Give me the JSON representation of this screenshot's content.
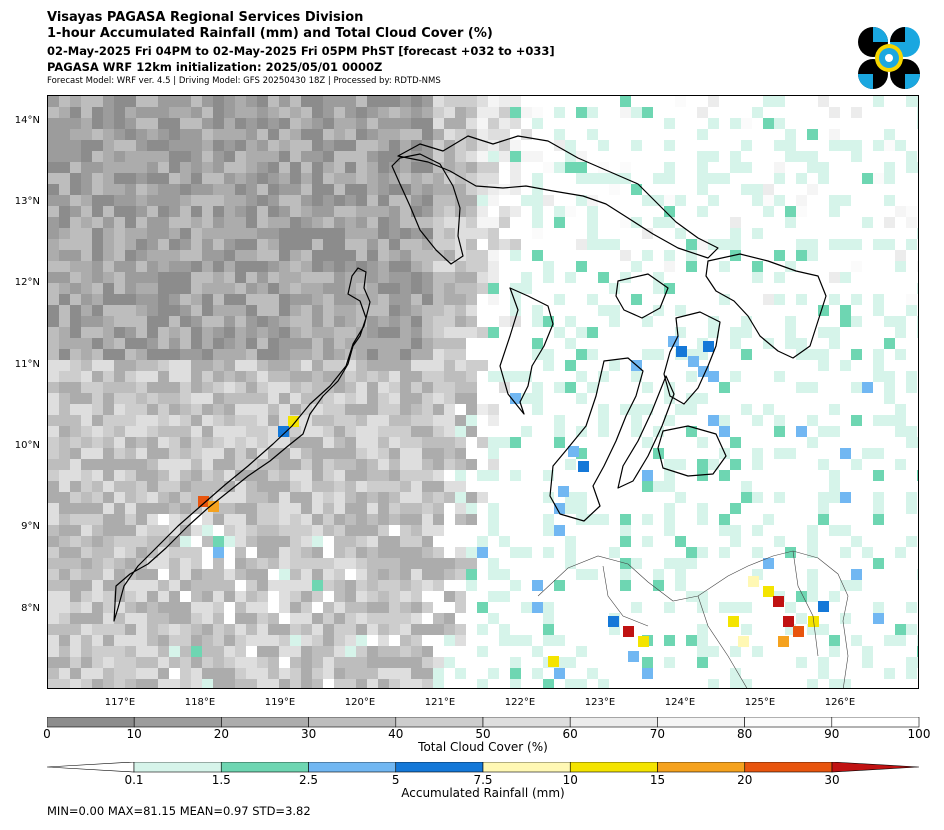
{
  "header": {
    "line1": "Visayas PAGASA Regional Services Division",
    "line2": "1-hour Accumulated Rainfall (mm) and Total Cloud Cover (%)",
    "line3": "02-May-2025 Fri 04PM to 02-May-2025 Fri 05PM PhST [forecast +032 to +033]",
    "line4": "PAGASA WRF 12km initialization: 2025/05/01 0000Z",
    "line5": "Forecast Model: WRF ver. 4.5 | Driving Model: GFS 20250430 18Z | Processed by: RDTD-NMS"
  },
  "map": {
    "lat_labels": [
      "14°N",
      "13°N",
      "12°N",
      "11°N",
      "10°N",
      "9°N",
      "8°N"
    ],
    "lon_labels": [
      "117°E",
      "118°E",
      "119°E",
      "120°E",
      "121°E",
      "122°E",
      "123°E",
      "124°E",
      "125°E",
      "126°E"
    ],
    "lat_range": [
      7.0,
      14.3
    ],
    "lon_range": [
      115.9,
      126.75
    ]
  },
  "cloud_colorbar": {
    "label": "Total Cloud Cover (%)",
    "ticks": [
      "0",
      "10",
      "20",
      "30",
      "40",
      "50",
      "60",
      "70",
      "80",
      "90",
      "100"
    ],
    "colors": [
      "#8c8c8c",
      "#9c9c9c",
      "#acacac",
      "#bdbdbd",
      "#cdcdcd",
      "#dedede",
      "#ececec",
      "#f5f5f5",
      "#fbfbfb",
      "#ffffff"
    ]
  },
  "rain_colorbar": {
    "label": "Accumulated Rainfall (mm)",
    "ticks": [
      "0.1",
      "1.5",
      "2.5",
      "5",
      "7.5",
      "10",
      "15",
      "20",
      "30"
    ],
    "colors": [
      "#ffffff",
      "#d6f4ea",
      "#6ed6b2",
      "#71b7f2",
      "#1478d8",
      "#fff8b4",
      "#f4e400",
      "#f5a21e",
      "#e8550e",
      "#c01212"
    ]
  },
  "stats": {
    "text": "MIN=0.00   MAX=81.15   MEAN=0.97   STD=3.82"
  },
  "logo": {
    "icon": "pagasa-logo-icon",
    "colors": [
      "#000000",
      "#1aa7e0",
      "#f6d600"
    ]
  }
}
